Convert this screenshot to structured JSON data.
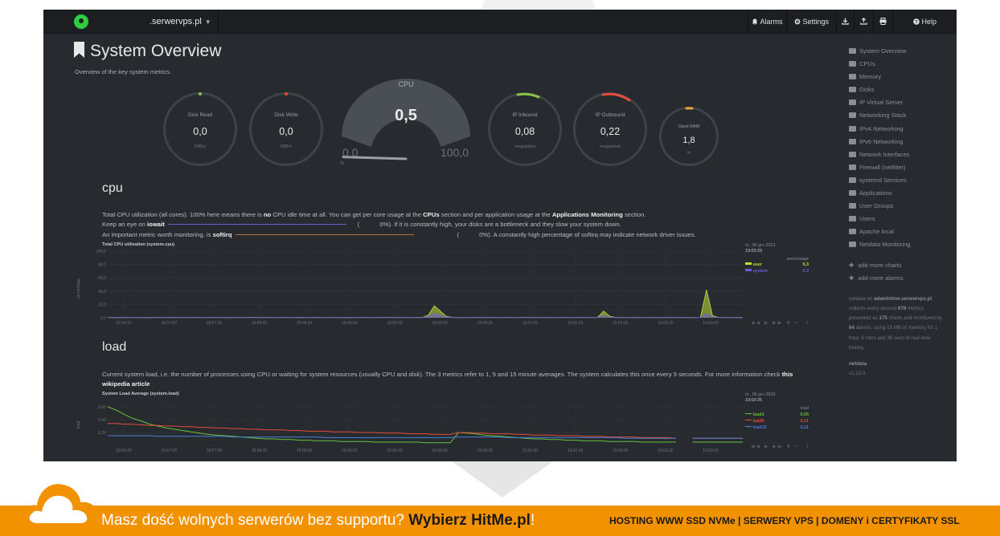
{
  "topbar": {
    "hostname": ".serwervps.pl",
    "alarms_label": "Alarms",
    "settings_label": "Settings",
    "help_label": "Help"
  },
  "page": {
    "title": "System Overview",
    "subtitle": "Overview of the key system metrics."
  },
  "gauges": {
    "disk_read": {
      "label": "Disk Read",
      "value": "0,0",
      "unit": "MiB/s"
    },
    "disk_write": {
      "label": "Disk Write",
      "value": "0,0",
      "unit": "MiB/s"
    },
    "cpu": {
      "label": "CPU",
      "value": "0,5",
      "min": "0,0",
      "max": "100,0",
      "unit": "%",
      "percent": 0.5
    },
    "ip_inbound": {
      "label": "IP Inbound",
      "value": "0,08",
      "unit": "megabits/s"
    },
    "ip_outbound": {
      "label": "IP Outbound",
      "value": "0,22",
      "unit": "megabits/s"
    },
    "used_ram": {
      "label": "Used RAM",
      "value": "1,8",
      "unit": "%"
    }
  },
  "colors": {
    "green": "#8bc34a",
    "red": "#e74c3c",
    "orange": "#f0a030",
    "user": "#c5dc3b",
    "system": "#6b5fd6",
    "load1": "#67c23a",
    "load5": "#e64a3c",
    "load15": "#4a7fd6",
    "footer": "#f39200"
  },
  "cpu_section": {
    "title": "cpu",
    "line1_a": "Total CPU utilization (all cores). 100% here means there is ",
    "line1_b": "no",
    "line1_c": " CPU idle time at all. You can get per core usage at the ",
    "line1_d": "CPUs",
    "line1_e": " section and per application usage at the ",
    "line1_f": "Applications Monitoring",
    "line1_g": " section.",
    "line2_a": "Keep an eye on ",
    "line2_b": "iowait",
    "line2_c": "0%). If it is constantly high, your disks are a bottleneck and they slow your system down.",
    "line3_a": "An important metric worth monitoring, is ",
    "line3_b": "softirq",
    "line3_c": "0%). A constantly high percentage of softirq may indicate network driver issues.",
    "chart_title": "Total CPU utilization (system.cpu)",
    "ylabel": "percentage",
    "date": "śr., 06 gru 2023",
    "time": "19:03:29",
    "legend_unit": "percentage",
    "legend": [
      {
        "name": "user",
        "value": "0,3"
      },
      {
        "name": "system",
        "value": "0,3"
      }
    ]
  },
  "load_section": {
    "title": "load",
    "desc_a": "Current system load, i.e. the number of processes using CPU or waiting for system resources (usually CPU and disk). The 3 metrics refer to 1, 5 and 15 minute averages. The system calculates this once every 5 seconds. For more information check ",
    "desc_link": "this wikipedia article",
    "chart_title": "System Load Average (system.load)",
    "ylabel": "load",
    "date": "śr., 06 gru 2023",
    "time": "19:03:25",
    "legend_unit": "load",
    "legend": [
      {
        "name": "load1",
        "value": "0,05"
      },
      {
        "name": "load5",
        "value": "0,11"
      },
      {
        "name": "load15",
        "value": "0,11"
      }
    ]
  },
  "sidebar": {
    "items": [
      {
        "label": "System Overview",
        "icon": "bookmark-icon"
      },
      {
        "label": "CPUs",
        "icon": "bolt-icon"
      },
      {
        "label": "Memory",
        "icon": "memory-icon"
      },
      {
        "label": "Disks",
        "icon": "hdd-icon"
      },
      {
        "label": "IP Virtual Server",
        "icon": "eye-icon"
      },
      {
        "label": "Networking Stack",
        "icon": "cloud-icon"
      },
      {
        "label": "IPv4 Networking",
        "icon": "cloud-icon"
      },
      {
        "label": "IPv6 Networking",
        "icon": "cloud-icon"
      },
      {
        "label": "Network Interfaces",
        "icon": "sitemap-icon"
      },
      {
        "label": "Firewall (netfilter)",
        "icon": "shield-icon"
      },
      {
        "label": "systemd Services",
        "icon": "cogs-icon"
      },
      {
        "label": "Applications",
        "icon": "heartbeat-icon"
      },
      {
        "label": "User Groups",
        "icon": "users-icon"
      },
      {
        "label": "Users",
        "icon": "user-icon"
      },
      {
        "label": "Apache local",
        "icon": "eye-icon"
      },
      {
        "label": "Netdata Monitoring",
        "icon": "bar-chart-icon"
      }
    ],
    "add_charts": "add more charts",
    "add_alarms": "add more alarms",
    "info_1": "netdata on ",
    "info_host": "adamhitme.serwervps.pl",
    "info_2": ", collects every second ",
    "info_metrics": "678",
    "info_3": " metrics, presented as ",
    "info_charts": "175",
    "info_4": " charts and monitored by ",
    "info_alarms": "64",
    "info_5": " alarms, using 15 MB of memory for 1 hour, 6 mins and 36 secs of real-time history.",
    "brand": "netdata",
    "version": "v1.12.0"
  },
  "footer": {
    "text_a": "Masz dość wolnych serwerów bez supportu? ",
    "text_b": "Wybierz HitMe.pl",
    "text_c": "!",
    "right": "HOSTING WWW SSD NVMe | SERWERY VPS | DOMENY i CERTYFIKATY SSL"
  },
  "chart_data": [
    {
      "type": "area",
      "title": "Total CPU utilization (system.cpu)",
      "ylabel": "percentage",
      "ylim": [
        0,
        100
      ],
      "y_ticks": [
        "100,0",
        "80,0",
        "60,0",
        "40,0",
        "20,0",
        "0,0"
      ],
      "x_ticks": [
        "18:56:30",
        "18:57:00",
        "18:57:30",
        "18:58:00",
        "18:58:30",
        "18:59:00",
        "18:59:30",
        "19:00:00",
        "19:00:30",
        "19:01:00",
        "19:01:30",
        "19:02:00",
        "19:02:30",
        "19:03:00"
      ],
      "series": [
        {
          "name": "user",
          "values": [
            0.5,
            0.3,
            0.4,
            0.3,
            0.5,
            0.3,
            0.4,
            0.3,
            0.5,
            0.4,
            0.3,
            0.6,
            0.4,
            0.3,
            0.5,
            0.4,
            0.3,
            0.5,
            0.4,
            0.3,
            0.4,
            0.5,
            0.3,
            0.4,
            0.6,
            0.3,
            0.4,
            0.5,
            0.3,
            0.4,
            0.5,
            0.3,
            0.4,
            0.3,
            0.5,
            0.4,
            0.3,
            0.5,
            0.4,
            0.3,
            0.4,
            0.3,
            0.5,
            0.4,
            0.3,
            0.5,
            0.4,
            0.6,
            0.3,
            0.4,
            0.3,
            0.5,
            0.4,
            4,
            18,
            10,
            2,
            0.5,
            0.4,
            0.3,
            0.5,
            0.4,
            0.3,
            0.5,
            0.4,
            0.3,
            0.5,
            0.4,
            0.3,
            0.6,
            0.4,
            0.3,
            0.5,
            0.4,
            0.3,
            0.4,
            0.5,
            0.3,
            0.4,
            0.5,
            0.3,
            0.4,
            10,
            2,
            0.5,
            0.4,
            0.3,
            0.5,
            0.4,
            0.3,
            0.5,
            0.4,
            0.3,
            0.5,
            0.4,
            0.3,
            0.4,
            0.3,
            0.5,
            42,
            3,
            0.5,
            0.4,
            0.3,
            0.5,
            0.4
          ]
        },
        {
          "name": "system",
          "values": [
            0.3,
            0.2,
            0.3,
            0.2,
            0.3,
            0.2,
            0.3,
            0.2,
            0.3,
            0.2,
            0.3,
            0.2,
            0.3,
            0.2,
            0.3,
            0.2,
            0.3,
            0.2,
            0.3,
            0.2,
            0.3,
            0.2,
            0.3,
            0.2,
            0.3,
            0.2,
            0.3,
            0.2,
            0.3,
            0.2,
            0.3,
            0.2,
            0.3,
            0.2,
            0.3,
            0.2,
            0.3,
            0.2,
            0.3,
            0.2,
            0.3,
            0.2,
            0.3,
            0.2,
            0.3,
            0.2,
            0.3,
            0.2,
            0.3,
            0.2,
            0.3,
            0.2,
            0.3,
            2,
            6,
            4,
            1,
            0.3,
            0.2,
            0.3,
            0.2,
            0.3,
            0.2,
            0.3,
            0.2,
            0.3,
            0.2,
            0.3,
            0.2,
            0.3,
            0.2,
            0.3,
            0.2,
            0.3,
            0.2,
            0.3,
            0.2,
            0.3,
            0.2,
            0.3,
            0.2,
            0.3,
            3,
            1,
            0.3,
            0.2,
            0.3,
            0.2,
            0.3,
            0.2,
            0.3,
            0.2,
            0.3,
            0.2,
            0.3,
            0.2,
            0.3,
            0.2,
            0.3,
            6,
            1,
            0.3,
            0.2,
            0.3,
            0.2,
            0.3
          ]
        }
      ]
    },
    {
      "type": "line",
      "title": "System Load Average (system.load)",
      "ylabel": "load",
      "ylim": [
        0,
        0.7
      ],
      "y_ticks": [
        "0,60",
        "0,40",
        "0,20"
      ],
      "x_ticks": [
        "18:56:30",
        "18:57:00",
        "18:57:30",
        "18:58:00",
        "18:58:30",
        "18:59:00",
        "18:59:30",
        "19:00:00",
        "19:00:30",
        "19:01:00",
        "19:01:30",
        "19:02:00",
        "19:02:30",
        "19:03:00"
      ],
      "series": [
        {
          "name": "load1",
          "values": [
            0.6,
            0.55,
            0.48,
            0.42,
            0.38,
            0.33,
            0.3,
            0.27,
            0.25,
            0.23,
            0.21,
            0.19,
            0.17,
            0.16,
            0.15,
            0.14,
            0.13,
            0.12,
            0.11,
            0.1,
            0.1,
            0.09,
            0.09,
            0.08,
            0.08,
            0.07,
            0.07,
            0.07,
            0.06,
            0.06,
            0.06,
            0.06,
            0.05,
            0.05,
            0.05,
            0.05,
            0.05,
            0.05,
            0.04,
            0.04,
            0.04,
            0.04,
            0.2,
            0.19,
            0.18,
            0.16,
            0.15,
            0.14,
            0.13,
            0.12,
            0.11,
            0.1,
            0.1,
            0.09,
            0.09,
            0.08,
            0.08,
            0.07,
            0.07,
            0.07,
            0.06,
            0.06,
            0.06,
            0.06,
            0.05,
            0.05,
            0.05,
            0.05,
            0.05,
            null,
            0.05,
            0.05,
            0.05,
            0.05,
            0.05,
            0.05,
            0.05
          ]
        },
        {
          "name": "load5",
          "values": [
            0.34,
            0.34,
            0.33,
            0.33,
            0.32,
            0.31,
            0.31,
            0.3,
            0.3,
            0.29,
            0.29,
            0.28,
            0.28,
            0.27,
            0.27,
            0.26,
            0.26,
            0.25,
            0.25,
            0.24,
            0.24,
            0.24,
            0.23,
            0.23,
            0.22,
            0.22,
            0.22,
            0.21,
            0.21,
            0.21,
            0.2,
            0.2,
            0.2,
            0.19,
            0.19,
            0.19,
            0.18,
            0.18,
            0.18,
            0.17,
            0.17,
            0.17,
            0.2,
            0.2,
            0.19,
            0.19,
            0.18,
            0.18,
            0.18,
            0.17,
            0.17,
            0.16,
            0.16,
            0.16,
            0.15,
            0.15,
            0.15,
            0.14,
            0.14,
            0.14,
            0.13,
            0.13,
            0.13,
            0.13,
            0.12,
            0.12,
            0.12,
            0.12,
            0.11,
            null,
            0.11,
            0.11,
            0.11,
            0.11,
            0.11,
            0.11,
            0.11
          ]
        },
        {
          "name": "load15",
          "values": [
            0.15,
            0.15,
            0.15,
            0.15,
            0.15,
            0.15,
            0.14,
            0.14,
            0.14,
            0.14,
            0.14,
            0.14,
            0.14,
            0.14,
            0.14,
            0.13,
            0.13,
            0.13,
            0.13,
            0.13,
            0.13,
            0.13,
            0.13,
            0.13,
            0.13,
            0.13,
            0.12,
            0.12,
            0.12,
            0.12,
            0.12,
            0.12,
            0.12,
            0.12,
            0.12,
            0.12,
            0.12,
            0.12,
            0.12,
            0.12,
            0.12,
            0.12,
            0.13,
            0.13,
            0.13,
            0.13,
            0.13,
            0.13,
            0.12,
            0.12,
            0.12,
            0.12,
            0.12,
            0.12,
            0.12,
            0.12,
            0.12,
            0.12,
            0.12,
            0.12,
            0.12,
            0.12,
            0.11,
            0.11,
            0.11,
            0.11,
            0.11,
            0.11,
            0.11,
            null,
            0.11,
            0.11,
            0.11,
            0.11,
            0.11,
            0.11,
            0.11
          ]
        }
      ]
    }
  ]
}
